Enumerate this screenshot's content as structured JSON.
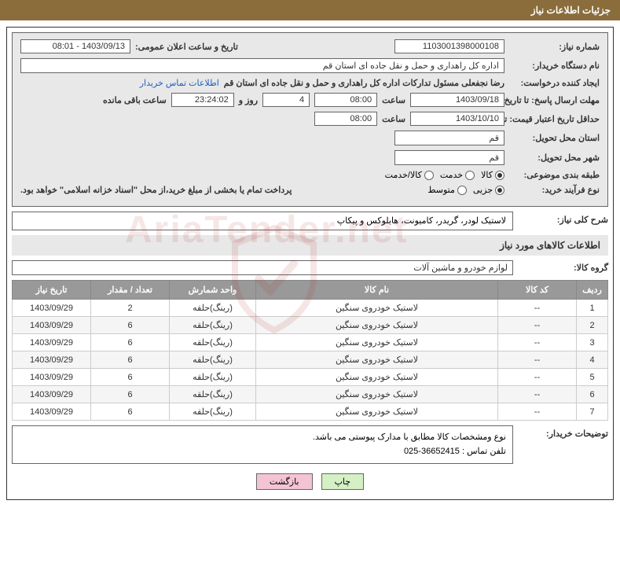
{
  "page_title": "جزئیات اطلاعات نیاز",
  "fields": {
    "need_number_label": "شماره نیاز:",
    "need_number": "1103001398000108",
    "announce_label": "تاریخ و ساعت اعلان عمومی:",
    "announce_value": "1403/09/13 - 08:01",
    "buyer_label": "نام دستگاه خریدار:",
    "buyer_value": "اداره کل راهداری و حمل و نقل جاده ای استان قم",
    "requester_label": "ایجاد کننده درخواست:",
    "requester_value": "رضا  نجفعلی مسئول تدارکات اداره کل راهداری و حمل و نقل جاده ای استان قم",
    "contact_link": "اطلاعات تماس خریدار",
    "deadline_label": "مهلت ارسال پاسخ: تا تاریخ:",
    "deadline_date": "1403/09/18",
    "time_label": "ساعت",
    "deadline_time": "08:00",
    "days_value": "4",
    "days_suffix": "روز و",
    "countdown": "23:24:02",
    "remaining_suffix": "ساعت باقی مانده",
    "validity_label": "حداقل تاریخ اعتبار قیمت: تا تاریخ:",
    "validity_date": "1403/10/10",
    "validity_time": "08:00",
    "province_label": "استان محل تحویل:",
    "province_value": "قم",
    "city_label": "شهر محل تحویل:",
    "city_value": "قم",
    "category_label": "طبقه بندی موضوعی:",
    "cat_kala": "کالا",
    "cat_khadmat": "خدمت",
    "cat_both": "کالا/خدمت",
    "process_label": "نوع فرآیند خرید:",
    "proc_partial": "جزیی",
    "proc_medium": "متوسط",
    "payment_note": "پرداخت تمام یا بخشی از مبلغ خرید،از محل \"اسناد خزانه اسلامی\" خواهد بود.",
    "general_desc_label": "شرح کلی نیاز:",
    "general_desc": "لاستیک لودر، گریدر، کامیونت، هایلوکس و پیکاپ",
    "goods_section_title": "اطلاعات کالاهای مورد نیاز",
    "goods_group_label": "گروه کالا:",
    "goods_group": "لوازم خودرو و ماشین آلات",
    "buyer_notes_label": "توضیحات خریدار:",
    "buyer_notes_line1": "نوع ومشخصات کالا مطابق با مدارک پیوستی می باشد.",
    "buyer_notes_line2": "تلفن تماس : 36652415-025"
  },
  "table": {
    "headers": {
      "row": "ردیف",
      "code": "کد کالا",
      "name": "نام کالا",
      "unit": "واحد شمارش",
      "qty": "تعداد / مقدار",
      "date": "تاریخ نیاز"
    },
    "rows": [
      {
        "row": "1",
        "code": "--",
        "name": "لاستیک خودروی سنگین",
        "unit": "(رینگ)حلقه",
        "qty": "2",
        "date": "1403/09/29"
      },
      {
        "row": "2",
        "code": "--",
        "name": "لاستیک خودروی سنگین",
        "unit": "(رینگ)حلقه",
        "qty": "6",
        "date": "1403/09/29"
      },
      {
        "row": "3",
        "code": "--",
        "name": "لاستیک خودروی سنگین",
        "unit": "(رینگ)حلقه",
        "qty": "6",
        "date": "1403/09/29"
      },
      {
        "row": "4",
        "code": "--",
        "name": "لاستیک خودروی سنگین",
        "unit": "(رینگ)حلقه",
        "qty": "6",
        "date": "1403/09/29"
      },
      {
        "row": "5",
        "code": "--",
        "name": "لاستیک خودروی سنگین",
        "unit": "(رینگ)حلقه",
        "qty": "6",
        "date": "1403/09/29"
      },
      {
        "row": "6",
        "code": "--",
        "name": "لاستیک خودروی سنگین",
        "unit": "(رینگ)حلقه",
        "qty": "6",
        "date": "1403/09/29"
      },
      {
        "row": "7",
        "code": "--",
        "name": "لاستیک خودروی سنگین",
        "unit": "(رینگ)حلقه",
        "qty": "6",
        "date": "1403/09/29"
      }
    ]
  },
  "buttons": {
    "print": "چاپ",
    "back": "بازگشت"
  },
  "styling": {
    "title_bg": "#8a6d3b",
    "title_fg": "#ffffff",
    "section_bg": "#e8e8e8",
    "border_color": "#666666",
    "th_bg": "#999999",
    "th_fg": "#ffffff",
    "link_color": "#1f5fbf",
    "btn_print_bg": "#d4f0c4",
    "btn_back_bg": "#f5c4d4",
    "font_family": "Tahoma",
    "base_font_size": 11
  }
}
